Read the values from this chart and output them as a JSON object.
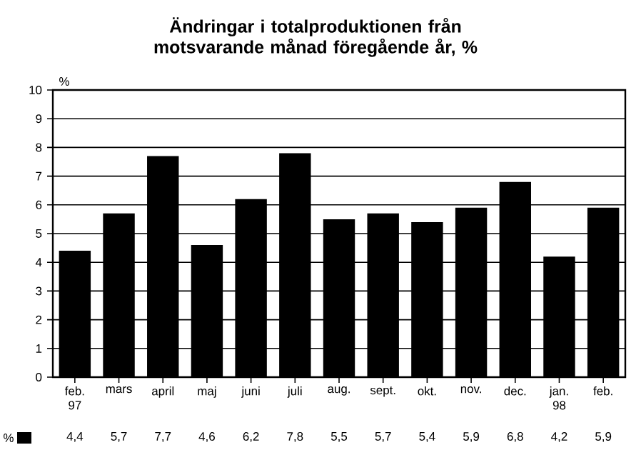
{
  "chart_data": {
    "type": "bar",
    "title": "Ändringar i totalproduktionen från motsvarande månad föregående år, %",
    "ylabel": "%",
    "categories": [
      "feb. 97",
      "mars",
      "april",
      "maj",
      "juni",
      "juli",
      "aug.",
      "sept.",
      "okt.",
      "nov.",
      "dec.",
      "jan. 98",
      "feb."
    ],
    "series": [
      {
        "name": "%",
        "color": "#000000",
        "values": [
          4.4,
          5.7,
          7.7,
          4.6,
          6.2,
          7.8,
          5.5,
          5.7,
          5.4,
          5.9,
          6.8,
          4.2,
          5.9
        ],
        "value_labels": [
          "4,4",
          "5,7",
          "7,7",
          "4,6",
          "6,2",
          "7,8",
          "5,5",
          "5,7",
          "5,4",
          "5,9",
          "6,8",
          "4,2",
          "5,9"
        ]
      }
    ],
    "ylim": [
      0,
      10
    ],
    "yticks": [
      0,
      1,
      2,
      3,
      4,
      5,
      6,
      7,
      8,
      9,
      10
    ],
    "grid": "y",
    "legend": "bottom left"
  }
}
